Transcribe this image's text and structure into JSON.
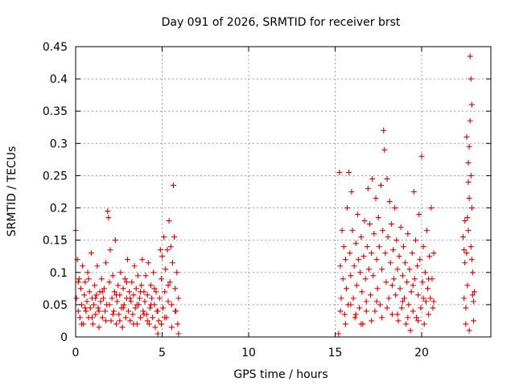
{
  "chart_data": {
    "type": "scatter",
    "title": "Day 091 of 2026, SRMTID for receiver brst",
    "xlabel": "GPS time / hours",
    "ylabel": "SRMTID / TECUs",
    "xlim": [
      0,
      24
    ],
    "ylim": [
      0,
      0.45
    ],
    "x_ticks": [
      0,
      5,
      10,
      15,
      20
    ],
    "x_tick_labels": [
      "0",
      "5",
      "10",
      "15",
      "20"
    ],
    "y_ticks": [
      0,
      0.05,
      0.1,
      0.15,
      0.2,
      0.25,
      0.3,
      0.35,
      0.4,
      0.45
    ],
    "y_tick_labels": [
      "0",
      "0.05",
      "0.1",
      "0.15",
      "0.2",
      "0.25",
      "0.3",
      "0.35",
      "0.4",
      "0.45"
    ],
    "grid": true,
    "marker": "+",
    "color": "#e00000",
    "series": [
      {
        "name": "SRMTID",
        "points": [
          [
            0.0,
            0.165
          ],
          [
            0.05,
            0.06
          ],
          [
            0.1,
            0.12
          ],
          [
            0.15,
            0.04
          ],
          [
            0.2,
            0.09
          ],
          [
            0.25,
            0.03
          ],
          [
            0.3,
            0.075
          ],
          [
            0.35,
            0.05
          ],
          [
            0.4,
            0.11
          ],
          [
            0.45,
            0.02
          ],
          [
            0.5,
            0.065
          ],
          [
            0.55,
            0.085
          ],
          [
            0.6,
            0.04
          ],
          [
            0.65,
            0.055
          ],
          [
            0.7,
            0.1
          ],
          [
            0.75,
            0.03
          ],
          [
            0.8,
            0.07
          ],
          [
            0.85,
            0.045
          ],
          [
            0.9,
            0.13
          ],
          [
            0.95,
            0.06
          ],
          [
            1.0,
            0.02
          ],
          [
            1.05,
            0.05
          ],
          [
            1.1,
            0.08
          ],
          [
            1.15,
            0.035
          ],
          [
            1.2,
            0.065
          ],
          [
            1.25,
            0.11
          ],
          [
            1.3,
            0.045
          ],
          [
            1.35,
            0.015
          ],
          [
            1.4,
            0.07
          ],
          [
            1.45,
            0.055
          ],
          [
            1.5,
            0.09
          ],
          [
            1.55,
            0.03
          ],
          [
            1.6,
            0.06
          ],
          [
            1.65,
            0.075
          ],
          [
            1.7,
            0.04
          ],
          [
            1.75,
            0.115
          ],
          [
            1.8,
            0.05
          ],
          [
            1.85,
            0.195
          ],
          [
            1.9,
            0.185
          ],
          [
            1.95,
            0.085
          ],
          [
            2.0,
            0.135
          ],
          [
            2.05,
            0.025
          ],
          [
            2.1,
            0.06
          ],
          [
            2.15,
            0.095
          ],
          [
            2.2,
            0.04
          ],
          [
            2.25,
            0.07
          ],
          [
            2.3,
            0.15
          ],
          [
            2.35,
            0.02
          ],
          [
            2.4,
            0.055
          ],
          [
            2.45,
            0.08
          ],
          [
            2.5,
            0.035
          ],
          [
            2.55,
            0.065
          ],
          [
            2.6,
            0.1
          ],
          [
            2.65,
            0.045
          ],
          [
            2.7,
            0.015
          ],
          [
            2.75,
            0.075
          ],
          [
            2.8,
            0.05
          ],
          [
            2.85,
            0.09
          ],
          [
            2.9,
            0.03
          ],
          [
            2.95,
            0.06
          ],
          [
            3.0,
            0.12
          ],
          [
            3.05,
            0.04
          ],
          [
            3.1,
            0.07
          ],
          [
            3.15,
            0.025
          ],
          [
            3.2,
            0.055
          ],
          [
            3.25,
            0.085
          ],
          [
            3.3,
            0.035
          ],
          [
            3.35,
            0.065
          ],
          [
            3.4,
            0.11
          ],
          [
            3.45,
            0.045
          ],
          [
            3.5,
            0.075
          ],
          [
            3.55,
            0.02
          ],
          [
            3.6,
            0.095
          ],
          [
            3.65,
            0.05
          ],
          [
            3.7,
            0.06
          ],
          [
            3.75,
            0.03
          ],
          [
            3.8,
            0.08
          ],
          [
            3.85,
            0.12
          ],
          [
            3.9,
            0.04
          ],
          [
            3.95,
            0.07
          ],
          [
            4.0,
            0.055
          ],
          [
            4.05,
            0.095
          ],
          [
            4.1,
            0.035
          ],
          [
            4.15,
            0.065
          ],
          [
            4.2,
            0.115
          ],
          [
            4.25,
            0.02
          ],
          [
            4.3,
            0.045
          ],
          [
            4.35,
            0.08
          ],
          [
            4.4,
            0.06
          ],
          [
            4.45,
            0.03
          ],
          [
            4.5,
            0.1
          ],
          [
            4.55,
            0.05
          ],
          [
            4.6,
            0.015
          ],
          [
            4.65,
            0.07
          ],
          [
            4.7,
            0.04
          ],
          [
            4.75,
            0.005
          ],
          [
            4.8,
            0.025
          ],
          [
            4.85,
            0.06
          ],
          [
            4.9,
            0.135
          ],
          [
            4.95,
            0.09
          ],
          [
            5.0,
            0.125
          ],
          [
            5.05,
            0.045
          ],
          [
            5.1,
            0.155
          ],
          [
            5.15,
            0.07
          ],
          [
            5.2,
            0.105
          ],
          [
            5.25,
            0.03
          ],
          [
            5.3,
            0.135
          ],
          [
            5.35,
            0.055
          ],
          [
            5.4,
            0.18
          ],
          [
            5.45,
            0.085
          ],
          [
            5.5,
            0.14
          ],
          [
            5.55,
            0.05
          ],
          [
            5.6,
            0.115
          ],
          [
            5.65,
            0.235
          ],
          [
            5.7,
            0.155
          ],
          [
            5.75,
            0.075
          ],
          [
            5.8,
            0.04
          ],
          [
            5.85,
            0.1
          ],
          [
            5.9,
            0.02
          ],
          [
            5.95,
            0.06
          ],
          [
            0.15,
            0.085
          ],
          [
            0.35,
            0.02
          ],
          [
            0.55,
            0.045
          ],
          [
            0.75,
            0.09
          ],
          [
            0.95,
            0.03
          ],
          [
            1.15,
            0.06
          ],
          [
            1.35,
            0.04
          ],
          [
            1.55,
            0.07
          ],
          [
            1.75,
            0.025
          ],
          [
            1.95,
            0.05
          ],
          [
            2.15,
            0.035
          ],
          [
            2.35,
            0.065
          ],
          [
            2.55,
            0.025
          ],
          [
            2.75,
            0.045
          ],
          [
            2.95,
            0.085
          ],
          [
            3.15,
            0.06
          ],
          [
            3.35,
            0.02
          ],
          [
            3.55,
            0.05
          ],
          [
            3.75,
            0.07
          ],
          [
            3.95,
            0.035
          ],
          [
            4.15,
            0.025
          ],
          [
            4.35,
            0.05
          ],
          [
            4.55,
            0.075
          ],
          [
            4.75,
            0.04
          ],
          [
            4.95,
            0.02
          ],
          [
            5.15,
            0.03
          ],
          [
            5.35,
            0.08
          ],
          [
            5.55,
            0.015
          ],
          [
            5.75,
            0.04
          ],
          [
            5.95,
            0.005
          ],
          [
            15.2,
            0.005
          ],
          [
            15.25,
            0.255
          ],
          [
            15.3,
            0.11
          ],
          [
            15.35,
            0.06
          ],
          [
            15.4,
            0.165
          ],
          [
            15.45,
            0.09
          ],
          [
            15.5,
            0.14
          ],
          [
            15.55,
            0.035
          ],
          [
            15.6,
            0.12
          ],
          [
            15.65,
            0.075
          ],
          [
            15.7,
            0.2
          ],
          [
            15.75,
            0.05
          ],
          [
            15.8,
            0.255
          ],
          [
            15.85,
            0.13
          ],
          [
            15.9,
            0.095
          ],
          [
            15.95,
            0.225
          ],
          [
            16.0,
            0.165
          ],
          [
            16.05,
            0.06
          ],
          [
            16.1,
            0.11
          ],
          [
            16.15,
            0.03
          ],
          [
            16.2,
            0.145
          ],
          [
            16.25,
            0.08
          ],
          [
            16.3,
            0.19
          ],
          [
            16.35,
            0.12
          ],
          [
            16.4,
            0.045
          ],
          [
            16.45,
            0.1
          ],
          [
            16.5,
            0.155
          ],
          [
            16.55,
            0.07
          ],
          [
            16.6,
            0.02
          ],
          [
            16.65,
            0.125
          ],
          [
            16.7,
            0.18
          ],
          [
            16.75,
            0.09
          ],
          [
            16.8,
            0.055
          ],
          [
            16.85,
            0.14
          ],
          [
            16.9,
            0.23
          ],
          [
            16.95,
            0.105
          ],
          [
            17.0,
            0.175
          ],
          [
            17.05,
            0.065
          ],
          [
            17.1,
            0.13
          ],
          [
            17.15,
            0.245
          ],
          [
            17.2,
            0.095
          ],
          [
            17.25,
            0.16
          ],
          [
            17.3,
            0.04
          ],
          [
            17.35,
            0.215
          ],
          [
            17.4,
            0.12
          ],
          [
            17.45,
            0.075
          ],
          [
            17.5,
            0.185
          ],
          [
            17.55,
            0.14
          ],
          [
            17.6,
            0.05
          ],
          [
            17.65,
            0.235
          ],
          [
            17.7,
            0.105
          ],
          [
            17.75,
            0.165
          ],
          [
            17.8,
            0.32
          ],
          [
            17.85,
            0.29
          ],
          [
            17.9,
            0.13
          ],
          [
            17.95,
            0.085
          ],
          [
            18.0,
            0.245
          ],
          [
            18.05,
            0.155
          ],
          [
            18.1,
            0.06
          ],
          [
            18.15,
            0.21
          ],
          [
            18.2,
            0.115
          ],
          [
            18.25,
            0.175
          ],
          [
            18.3,
            0.035
          ],
          [
            18.35,
            0.135
          ],
          [
            18.4,
            0.09
          ],
          [
            18.45,
            0.2
          ],
          [
            18.5,
            0.065
          ],
          [
            18.55,
            0.15
          ],
          [
            18.6,
            0.105
          ],
          [
            18.65,
            0.025
          ],
          [
            18.7,
            0.125
          ],
          [
            18.75,
            0.075
          ],
          [
            18.8,
            0.17
          ],
          [
            18.85,
            0.045
          ],
          [
            18.9,
            0.095
          ],
          [
            18.95,
            0.14
          ],
          [
            19.0,
            0.06
          ],
          [
            19.05,
            0.115
          ],
          [
            19.1,
            0.02
          ],
          [
            19.15,
            0.085
          ],
          [
            19.2,
            0.16
          ],
          [
            19.25,
            0.05
          ],
          [
            19.3,
            0.105
          ],
          [
            19.35,
            0.01
          ],
          [
            19.4,
            0.07
          ],
          [
            19.45,
            0.13
          ],
          [
            19.5,
            0.04
          ],
          [
            19.55,
            0.225
          ],
          [
            19.6,
            0.09
          ],
          [
            19.65,
            0.15
          ],
          [
            19.7,
            0.03
          ],
          [
            19.75,
            0.11
          ],
          [
            19.8,
            0.065
          ],
          [
            19.85,
            0.19
          ],
          [
            19.9,
            0.12
          ],
          [
            19.95,
            0.045
          ],
          [
            20.0,
            0.28
          ],
          [
            20.05,
            0.085
          ],
          [
            20.1,
            0.14
          ],
          [
            20.15,
            0.02
          ],
          [
            20.2,
            0.1
          ],
          [
            20.25,
            0.055
          ],
          [
            20.3,
            0.165
          ],
          [
            20.35,
            0.075
          ],
          [
            20.4,
            0.035
          ],
          [
            20.45,
            0.125
          ],
          [
            20.5,
            0.06
          ],
          [
            20.55,
            0.2
          ],
          [
            20.6,
            0.09
          ],
          [
            20.65,
            0.045
          ],
          [
            15.3,
            0.04
          ],
          [
            15.6,
            0.02
          ],
          [
            15.9,
            0.05
          ],
          [
            16.2,
            0.035
          ],
          [
            16.5,
            0.02
          ],
          [
            16.8,
            0.04
          ],
          [
            17.1,
            0.025
          ],
          [
            17.4,
            0.055
          ],
          [
            17.7,
            0.03
          ],
          [
            18.0,
            0.045
          ],
          [
            18.3,
            0.08
          ],
          [
            18.6,
            0.035
          ],
          [
            18.9,
            0.055
          ],
          [
            19.2,
            0.03
          ],
          [
            19.5,
            0.08
          ],
          [
            19.8,
            0.025
          ],
          [
            20.1,
            0.06
          ],
          [
            20.4,
            0.09
          ],
          [
            20.7,
            0.055
          ],
          [
            20.7,
            0.13
          ],
          [
            22.4,
            0.155
          ],
          [
            22.45,
            0.06
          ],
          [
            22.5,
            0.115
          ],
          [
            22.55,
            0.02
          ],
          [
            22.6,
            0.31
          ],
          [
            22.65,
            0.185
          ],
          [
            22.7,
            0.27
          ],
          [
            22.75,
            0.215
          ],
          [
            22.8,
            0.335
          ],
          [
            22.85,
            0.14
          ],
          [
            22.9,
            0.36
          ],
          [
            22.95,
            0.1
          ],
          [
            23.0,
            0.055
          ],
          [
            22.85,
            0.4
          ],
          [
            22.8,
            0.435
          ],
          [
            22.75,
            0.295
          ],
          [
            22.7,
            0.24
          ],
          [
            22.65,
            0.08
          ],
          [
            22.55,
            0.045
          ],
          [
            22.5,
            0.18
          ],
          [
            22.6,
            0.13
          ],
          [
            22.9,
            0.2
          ],
          [
            23.0,
            0.025
          ],
          [
            22.95,
            0.065
          ],
          [
            22.85,
            0.25
          ],
          [
            22.75,
            0.01
          ],
          [
            22.45,
            0.135
          ],
          [
            22.7,
            0.165
          ],
          [
            23.05,
            0.07
          ],
          [
            22.9,
            0.12
          ]
        ]
      }
    ]
  }
}
